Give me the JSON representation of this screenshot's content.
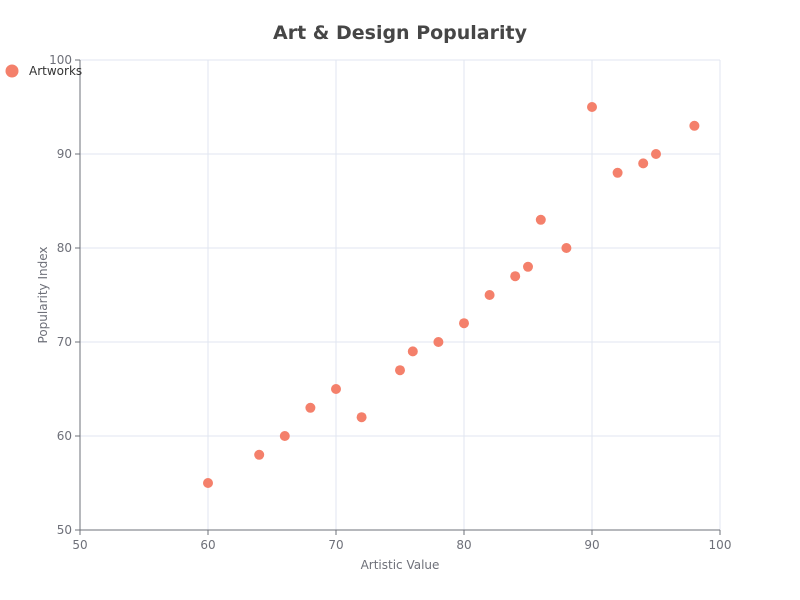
{
  "chart_data": {
    "type": "scatter",
    "title": "Art & Design Popularity",
    "xlabel": "Artistic Value",
    "ylabel": "Popularity Index",
    "xlim": [
      50,
      100
    ],
    "ylim": [
      50,
      100
    ],
    "x_ticks": [
      50,
      60,
      70,
      80,
      90,
      100
    ],
    "y_ticks": [
      50,
      60,
      70,
      80,
      90,
      100
    ],
    "grid": true,
    "legend_position": "top-left",
    "series": [
      {
        "name": "Artworks",
        "color": "#f4806b",
        "points": [
          {
            "x": 60,
            "y": 55
          },
          {
            "x": 64,
            "y": 58
          },
          {
            "x": 66,
            "y": 60
          },
          {
            "x": 68,
            "y": 63
          },
          {
            "x": 70,
            "y": 65
          },
          {
            "x": 72,
            "y": 62
          },
          {
            "x": 75,
            "y": 67
          },
          {
            "x": 76,
            "y": 69
          },
          {
            "x": 78,
            "y": 70
          },
          {
            "x": 80,
            "y": 72
          },
          {
            "x": 82,
            "y": 75
          },
          {
            "x": 84,
            "y": 77
          },
          {
            "x": 85,
            "y": 78
          },
          {
            "x": 86,
            "y": 83
          },
          {
            "x": 88,
            "y": 80
          },
          {
            "x": 90,
            "y": 95
          },
          {
            "x": 92,
            "y": 88
          },
          {
            "x": 94,
            "y": 89
          },
          {
            "x": 95,
            "y": 90
          },
          {
            "x": 98,
            "y": 93
          }
        ]
      }
    ]
  }
}
